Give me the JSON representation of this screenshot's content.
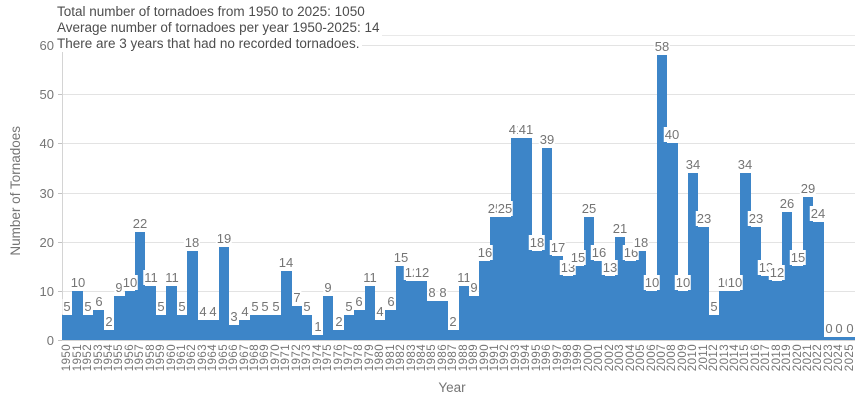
{
  "header": {
    "line1": "Total number of tornadoes from 1950 to 2025: 1050",
    "line2": "Average number of tornadoes per year 1950-2025: 14",
    "line3": "There are 3 years that had no recorded tornadoes."
  },
  "chart_data": {
    "type": "bar",
    "xlabel": "Year",
    "ylabel": "Number of Tornadoes",
    "ylim": [
      0,
      60
    ],
    "yticks": [
      0,
      10,
      20,
      30,
      40,
      50,
      60
    ],
    "grid": true,
    "legend": "none",
    "bar_color": "#3d85c8",
    "axis_text_color": "#757575",
    "annotation_text_color": "#4d4d4d",
    "categories": [
      "1950",
      "1951",
      "1952",
      "1953",
      "1954",
      "1955",
      "1956",
      "1957",
      "1958",
      "1959",
      "1960",
      "1961",
      "1962",
      "1963",
      "1964",
      "1965",
      "1966",
      "1967",
      "1968",
      "1969",
      "1970",
      "1971",
      "1972",
      "1973",
      "1974",
      "1975",
      "1976",
      "1977",
      "1978",
      "1979",
      "1980",
      "1981",
      "1982",
      "1983",
      "1984",
      "1985",
      "1986",
      "1987",
      "1988",
      "1989",
      "1990",
      "1991",
      "1992",
      "1993",
      "1994",
      "1995",
      "1996",
      "1997",
      "1998",
      "1999",
      "2000",
      "2001",
      "2002",
      "2003",
      "2004",
      "2005",
      "2006",
      "2007",
      "2008",
      "2009",
      "2010",
      "2011",
      "2012",
      "2013",
      "2014",
      "2015",
      "2016",
      "2017",
      "2018",
      "2019",
      "2020",
      "2021",
      "2022",
      "2023",
      "2024",
      "2025"
    ],
    "values": [
      5,
      10,
      5,
      6,
      2,
      9,
      10,
      22,
      11,
      5,
      11,
      5,
      18,
      4,
      4,
      19,
      3,
      4,
      5,
      5,
      5,
      14,
      7,
      5,
      1,
      9,
      2,
      5,
      6,
      11,
      4,
      6,
      15,
      12,
      12,
      8,
      8,
      2,
      11,
      9,
      16,
      25,
      25,
      41,
      41,
      18,
      39,
      17,
      13,
      15,
      25,
      16,
      13,
      21,
      16,
      18,
      10,
      58,
      40,
      10,
      34,
      23,
      5,
      10,
      10,
      34,
      23,
      13,
      12,
      26,
      15,
      29,
      24,
      0,
      0,
      0
    ]
  }
}
